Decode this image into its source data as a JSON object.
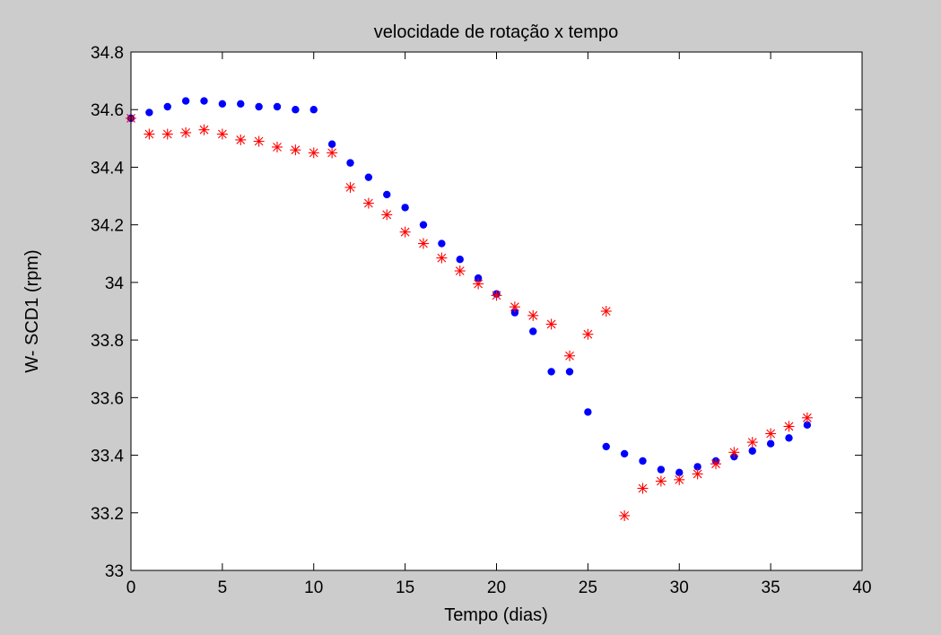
{
  "chart_data": {
    "type": "scatter",
    "title": "velocidade de rotação x tempo",
    "xlabel": "Tempo (dias)",
    "ylabel": "W- SCD1 (rpm)",
    "xlim": [
      0,
      40
    ],
    "ylim": [
      33,
      34.8
    ],
    "xticks": [
      0,
      5,
      10,
      15,
      20,
      25,
      30,
      35,
      40
    ],
    "yticks": [
      33,
      33.2,
      33.4,
      33.6,
      33.8,
      34,
      34.2,
      34.4,
      34.6,
      34.8
    ],
    "xtick_labels": [
      "0",
      "5",
      "10",
      "15",
      "20",
      "25",
      "30",
      "35",
      "40"
    ],
    "ytick_labels": [
      "33",
      "33.2",
      "33.4",
      "33.6",
      "33.8",
      "34",
      "34.2",
      "34.4",
      "34.6",
      "34.8"
    ],
    "grid": false,
    "background": "#cccccc",
    "plot_background": "#ffffff",
    "series": [
      {
        "marker": "dot",
        "color": "#0000ff",
        "x": [
          0,
          1,
          2,
          3,
          4,
          5,
          6,
          7,
          8,
          9,
          10,
          11,
          12,
          13,
          14,
          15,
          16,
          17,
          18,
          19,
          20,
          21,
          22,
          23,
          24,
          25,
          26,
          27,
          28,
          29,
          30,
          31,
          32,
          33,
          34,
          35,
          36,
          37
        ],
        "y": [
          34.57,
          34.59,
          34.61,
          34.63,
          34.63,
          34.62,
          34.62,
          34.61,
          34.61,
          34.6,
          34.6,
          34.48,
          34.415,
          34.365,
          34.305,
          34.26,
          34.2,
          34.135,
          34.08,
          34.015,
          33.96,
          33.895,
          33.83,
          33.69,
          33.69,
          33.55,
          33.43,
          33.405,
          33.38,
          33.35,
          33.34,
          33.36,
          33.38,
          33.395,
          33.415,
          33.44,
          33.46,
          33.505
        ]
      },
      {
        "marker": "asterisk",
        "color": "#ff0000",
        "x": [
          0,
          1,
          2,
          3,
          4,
          5,
          6,
          7,
          8,
          9,
          10,
          11,
          12,
          13,
          14,
          15,
          16,
          17,
          18,
          19,
          20,
          21,
          22,
          23,
          24,
          25,
          26,
          27,
          28,
          29,
          30,
          31,
          32,
          33,
          34,
          35,
          36,
          37
        ],
        "y": [
          34.57,
          34.515,
          34.515,
          34.52,
          34.53,
          34.515,
          34.495,
          34.49,
          34.47,
          34.46,
          34.45,
          34.45,
          34.33,
          34.275,
          34.235,
          34.175,
          34.135,
          34.085,
          34.04,
          33.995,
          33.955,
          33.915,
          33.885,
          33.855,
          33.745,
          33.82,
          33.9,
          33.19,
          33.285,
          33.31,
          33.315,
          33.335,
          33.37,
          33.41,
          33.445,
          33.475,
          33.5,
          33.53
        ]
      }
    ]
  }
}
